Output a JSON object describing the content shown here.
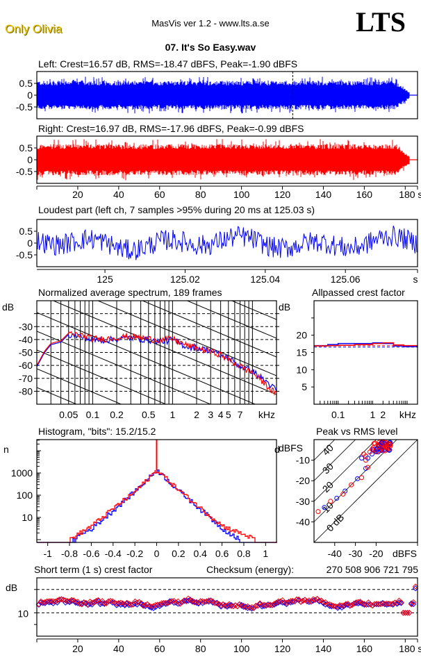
{
  "header": {
    "brand": "Only Olivia",
    "app_title": "MasVis ver 1.2 - www.lts.a.se",
    "logo": "LTS",
    "file_name": "07. It's So Easy.wav"
  },
  "colors": {
    "left": "#0000ff",
    "right": "#ff0000",
    "axis": "#000000"
  },
  "chart_data": [
    {
      "id": "left_waveform",
      "type": "area",
      "title": "Left: Crest=16.57 dB, RMS=-18.47 dBFS, Peak=-1.90 dBFS",
      "channel": "left",
      "crest_db": 16.57,
      "rms_dbfs": -18.47,
      "peak_dbfs": -1.9,
      "ylim": [
        -1,
        1
      ],
      "yticks": [
        "0.5",
        "0",
        "-0.5"
      ],
      "ytick_values": [
        0.5,
        0,
        -0.5
      ],
      "xlim": [
        0,
        186
      ],
      "duration_s": 186,
      "envelope": {
        "typical_peak": 0.55,
        "max_peak": 0.78,
        "fade_out_start_s": 175,
        "fade_out_end_s": 180
      },
      "marker_s": 125.03
    },
    {
      "id": "right_waveform",
      "type": "area",
      "title": "Right: Crest=16.97 dB, RMS=-17.96 dBFS, Peak=-0.99 dBFS",
      "channel": "right",
      "crest_db": 16.97,
      "rms_dbfs": -17.96,
      "peak_dbfs": -0.99,
      "ylim": [
        -1,
        1
      ],
      "yticks": [
        "0.5",
        "0",
        "-0.5"
      ],
      "ytick_values": [
        0.5,
        0,
        -0.5
      ],
      "xlim": [
        0,
        186
      ],
      "xticks": [
        "20",
        "40",
        "60",
        "80",
        "100",
        "120",
        "140",
        "160",
        "180 s"
      ],
      "xtick_values": [
        20,
        40,
        60,
        80,
        100,
        120,
        140,
        160,
        180
      ],
      "envelope": {
        "typical_peak": 0.6,
        "max_peak": 0.88,
        "fade_out_start_s": 175,
        "fade_out_end_s": 180
      }
    },
    {
      "id": "loudest_part",
      "type": "line",
      "title": "Loudest part (left  ch, 7 samples >95% during 20 ms at 125.03 s)",
      "ylim": [
        -1,
        1
      ],
      "yticks": [
        "0.5",
        "0",
        "-0.5"
      ],
      "ytick_values": [
        0.5,
        0,
        -0.5
      ],
      "xlim": [
        124.983,
        125.078
      ],
      "xticks": [
        "125",
        "125.02",
        "125.04",
        "125.06",
        "s"
      ],
      "xtick_values": [
        125.0,
        125.02,
        125.04,
        125.06,
        125.078
      ]
    },
    {
      "id": "avg_spectrum",
      "type": "line",
      "title": "Normalized average spectrum, 189 frames",
      "ylabel": "dB",
      "xlabel": "kHz",
      "ylim": [
        -90,
        -10
      ],
      "yticks": [
        "-30",
        "-40",
        "-50",
        "-60",
        "-70",
        "-80"
      ],
      "ytick_values": [
        -30,
        -40,
        -50,
        -60,
        -70,
        -80
      ],
      "xscale": "log",
      "xlim_khz": [
        0.02,
        20
      ],
      "xticks": [
        "0.05",
        "0.1",
        "0.2",
        "0.5",
        "1",
        "2",
        "3",
        "4",
        "5",
        "7"
      ],
      "xtick_values": [
        0.05,
        0.1,
        0.2,
        0.5,
        1,
        2,
        3,
        4,
        5,
        7
      ],
      "series": [
        {
          "name": "left",
          "freq_khz": [
            0.02,
            0.025,
            0.03,
            0.04,
            0.05,
            0.07,
            0.1,
            0.15,
            0.2,
            0.3,
            0.5,
            0.7,
            1,
            1.5,
            2,
            3,
            4,
            5,
            7,
            10,
            15,
            20
          ],
          "db": [
            -61,
            -50,
            -44,
            -42,
            -36,
            -37,
            -40,
            -40,
            -39,
            -38,
            -40,
            -41,
            -40,
            -45,
            -46,
            -48,
            -52,
            -54,
            -60,
            -64,
            -72,
            -79
          ]
        },
        {
          "name": "right",
          "freq_khz": [
            0.02,
            0.025,
            0.03,
            0.04,
            0.05,
            0.07,
            0.1,
            0.15,
            0.2,
            0.3,
            0.5,
            0.7,
            1,
            1.5,
            2,
            3,
            4,
            5,
            7,
            10,
            15,
            20
          ],
          "db": [
            -60,
            -49,
            -43,
            -41,
            -35,
            -36,
            -39,
            -39,
            -38,
            -37,
            -39,
            -40,
            -39,
            -44,
            -46,
            -49,
            -51,
            -55,
            -60,
            -65,
            -75,
            -82
          ]
        }
      ]
    },
    {
      "id": "allpassed_crest",
      "type": "line",
      "title": "Allpassed crest factor",
      "ylabel": "dB",
      "xlabel": "kHz",
      "ylim": [
        0,
        30
      ],
      "yticks": [
        "20",
        "15",
        "10",
        "5"
      ],
      "ytick_values": [
        20,
        15,
        10,
        5
      ],
      "xscale": "log",
      "xlim_khz": [
        0.02,
        20
      ],
      "xticks": [
        "0.1",
        "1",
        "2"
      ],
      "xtick_values": [
        0.1,
        1,
        2
      ],
      "series": [
        {
          "name": "left",
          "freq_khz": [
            0.02,
            0.05,
            0.1,
            0.3,
            1,
            2,
            4,
            8,
            20
          ],
          "db": [
            17.0,
            17.3,
            17.6,
            17.6,
            17.8,
            17.6,
            16.9,
            16.7,
            16.6
          ],
          "reference_db": 16.57
        },
        {
          "name": "right",
          "freq_khz": [
            0.02,
            0.05,
            0.1,
            0.3,
            1,
            2,
            4,
            8,
            20
          ],
          "db": [
            16.9,
            17.0,
            17.1,
            17.3,
            17.6,
            17.8,
            17.2,
            17.0,
            17.0
          ],
          "reference_db": 16.97
        }
      ]
    },
    {
      "id": "histogram",
      "type": "line",
      "title": "Histogram, \"bits\": 15.2/15.2",
      "ylabel": "n",
      "yscale": "log",
      "yticks": [
        "1000",
        "100",
        "10"
      ],
      "ytick_values": [
        1000,
        100,
        10
      ],
      "xlim": [
        -1.1,
        1.1
      ],
      "xticks": [
        "-1",
        "-0.8",
        "-0.6",
        "-0.4",
        "-0.2",
        "0",
        "0.2",
        "0.4",
        "0.6",
        "0.8",
        "1"
      ],
      "xtick_values": [
        -1,
        -0.8,
        -0.6,
        -0.4,
        -0.2,
        0,
        0.2,
        0.4,
        0.6,
        0.8,
        1
      ],
      "bits_left": 15.2,
      "bits_right": 15.2,
      "series": [
        {
          "name": "left",
          "x": [
            -0.78,
            -0.6,
            -0.4,
            -0.2,
            0,
            0.2,
            0.4,
            0.6,
            0.75
          ],
          "n": [
            1,
            3,
            20,
            150,
            1300,
            150,
            22,
            3,
            1
          ]
        },
        {
          "name": "right",
          "x": [
            -0.8,
            -0.6,
            -0.4,
            -0.2,
            0,
            0.2,
            0.4,
            0.6,
            0.9
          ],
          "n": [
            1,
            4,
            25,
            140,
            1300,
            160,
            25,
            4,
            1
          ]
        }
      ]
    },
    {
      "id": "peak_vs_rms",
      "type": "scatter",
      "title": "Peak vs RMS level",
      "ylabel": "dBFS",
      "xlabel": "dBFS",
      "xlim": [
        -50,
        0
      ],
      "ylim": [
        -50,
        0
      ],
      "xticks": [
        "-40",
        "-30",
        "-20"
      ],
      "xtick_values": [
        -40,
        -30,
        -20
      ],
      "yticks": [
        "-10",
        "-20",
        "-30",
        "-40"
      ],
      "ytick_values": [
        -10,
        -20,
        -30,
        -40
      ],
      "diagonals": [
        "0 dB",
        "10",
        "20",
        "30",
        "40"
      ],
      "diagonal_values": [
        0,
        10,
        20,
        30,
        40
      ],
      "series": [
        {
          "name": "left",
          "points": [
            [
              -45,
              -33
            ],
            [
              -39,
              -28.5
            ],
            [
              -35,
              -25
            ],
            [
              -29,
              -19
            ],
            [
              -25,
              -14
            ],
            [
              -27,
              -9
            ],
            [
              -24,
              -9
            ],
            [
              -22,
              -7
            ],
            [
              -20,
              -5
            ],
            [
              -18,
              -4
            ],
            [
              -17,
              -3
            ],
            [
              -19,
              -6
            ],
            [
              -16,
              -5
            ],
            [
              -18,
              -2
            ],
            [
              -15,
              -4
            ]
          ]
        },
        {
          "name": "right",
          "points": [
            [
              -48,
              -35
            ],
            [
              -42,
              -30
            ],
            [
              -36,
              -26.5
            ],
            [
              -32,
              -22
            ],
            [
              -27,
              -18.5
            ],
            [
              -24,
              -13.5
            ],
            [
              -25,
              -10
            ],
            [
              -25,
              -8
            ],
            [
              -26,
              -7
            ],
            [
              -23,
              -6
            ],
            [
              -21,
              -5
            ],
            [
              -20,
              -6
            ],
            [
              -19,
              -3
            ],
            [
              -18,
              -4
            ],
            [
              -17,
              -5
            ],
            [
              -16,
              -3
            ],
            [
              -15,
              -2
            ],
            [
              -17,
              -2
            ],
            [
              -14,
              -3
            ],
            [
              -16,
              -1.5
            ],
            [
              -13,
              -2
            ]
          ]
        }
      ]
    },
    {
      "id": "short_term_crest",
      "type": "scatter",
      "title": "Short term (1 s) crest factor",
      "checksum_label": "Checksum (energy):",
      "checksum_value": "270 508 906 721 795",
      "ylabel": "dB",
      "ylim": [
        0,
        25
      ],
      "yticks": [
        "10"
      ],
      "ytick_values": [
        10
      ],
      "dashed_lines_db": [
        10,
        20
      ],
      "xlim": [
        0,
        186
      ],
      "xticks": [
        "20",
        "40",
        "60",
        "80",
        "100",
        "120",
        "140",
        "160",
        "180 s"
      ],
      "xtick_values": [
        20,
        40,
        60,
        80,
        100,
        120,
        140,
        160,
        180
      ],
      "series": [
        {
          "name": "left",
          "typical_db": [
            12,
            16
          ],
          "points_count": 186
        },
        {
          "name": "right",
          "typical_db": [
            12,
            16
          ],
          "points_count": 186,
          "last_point_db": 21
        }
      ]
    }
  ]
}
